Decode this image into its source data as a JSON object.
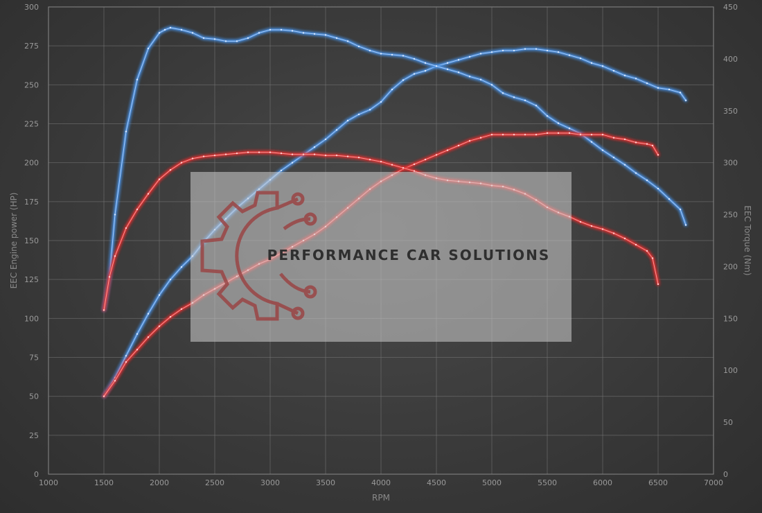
{
  "chart_data": {
    "type": "line",
    "xlabel": "RPM",
    "ylabel_left": "EEC Engine power (HP)",
    "ylabel_right": "EEC Torque (Nm)",
    "xlim": [
      1000,
      7000
    ],
    "ylim_left": [
      0,
      300
    ],
    "ylim_right": [
      0,
      450
    ],
    "x_ticks": [
      1000,
      1500,
      2000,
      2500,
      3000,
      3500,
      4000,
      4500,
      5000,
      5500,
      6000,
      6500,
      7000
    ],
    "y_left_ticks": [
      0,
      25,
      50,
      75,
      100,
      125,
      150,
      175,
      200,
      225,
      250,
      275,
      300
    ],
    "y_right_ticks": [
      0,
      50,
      100,
      150,
      200,
      250,
      300,
      350,
      400,
      450
    ],
    "grid": true,
    "series": [
      {
        "kind": "power",
        "axis": "left",
        "color": "#4a8fe0",
        "points": [
          [
            1500,
            50
          ],
          [
            1600,
            62
          ],
          [
            1700,
            76
          ],
          [
            1800,
            90
          ],
          [
            1900,
            103
          ],
          [
            2000,
            115
          ],
          [
            2100,
            125
          ],
          [
            2200,
            133
          ],
          [
            2300,
            140
          ],
          [
            2400,
            149
          ],
          [
            2500,
            157
          ],
          [
            2600,
            164
          ],
          [
            2700,
            171
          ],
          [
            2800,
            177
          ],
          [
            2900,
            183
          ],
          [
            3000,
            189
          ],
          [
            3100,
            195
          ],
          [
            3200,
            200
          ],
          [
            3300,
            205
          ],
          [
            3400,
            210
          ],
          [
            3500,
            215
          ],
          [
            3600,
            221
          ],
          [
            3700,
            227
          ],
          [
            3800,
            231
          ],
          [
            3900,
            234
          ],
          [
            4000,
            239
          ],
          [
            4100,
            247
          ],
          [
            4200,
            253
          ],
          [
            4300,
            257
          ],
          [
            4400,
            259
          ],
          [
            4500,
            262
          ],
          [
            4600,
            264
          ],
          [
            4700,
            266
          ],
          [
            4800,
            268
          ],
          [
            4900,
            270
          ],
          [
            5000,
            271
          ],
          [
            5100,
            272
          ],
          [
            5200,
            272
          ],
          [
            5300,
            273
          ],
          [
            5400,
            273
          ],
          [
            5500,
            272
          ],
          [
            5600,
            271
          ],
          [
            5700,
            269
          ],
          [
            5800,
            267
          ],
          [
            5900,
            264
          ],
          [
            6000,
            262
          ],
          [
            6100,
            259
          ],
          [
            6200,
            256
          ],
          [
            6300,
            254
          ],
          [
            6400,
            251
          ],
          [
            6500,
            248
          ],
          [
            6600,
            247
          ],
          [
            6700,
            245
          ],
          [
            6750,
            240
          ]
        ]
      },
      {
        "kind": "torque",
        "axis": "right",
        "color": "#4a8fe0",
        "points": [
          [
            1500,
            158
          ],
          [
            1550,
            190
          ],
          [
            1600,
            250
          ],
          [
            1700,
            330
          ],
          [
            1800,
            380
          ],
          [
            1900,
            410
          ],
          [
            2000,
            425
          ],
          [
            2050,
            428
          ],
          [
            2100,
            430
          ],
          [
            2200,
            428
          ],
          [
            2300,
            425
          ],
          [
            2400,
            420
          ],
          [
            2500,
            419
          ],
          [
            2600,
            417
          ],
          [
            2700,
            417
          ],
          [
            2800,
            420
          ],
          [
            2900,
            425
          ],
          [
            3000,
            428
          ],
          [
            3100,
            428
          ],
          [
            3200,
            427
          ],
          [
            3300,
            425
          ],
          [
            3400,
            424
          ],
          [
            3500,
            423
          ],
          [
            3600,
            420
          ],
          [
            3700,
            417
          ],
          [
            3800,
            412
          ],
          [
            3900,
            408
          ],
          [
            4000,
            405
          ],
          [
            4100,
            404
          ],
          [
            4200,
            403
          ],
          [
            4300,
            400
          ],
          [
            4400,
            396
          ],
          [
            4500,
            393
          ],
          [
            4600,
            390
          ],
          [
            4700,
            387
          ],
          [
            4800,
            383
          ],
          [
            4900,
            380
          ],
          [
            5000,
            375
          ],
          [
            5100,
            367
          ],
          [
            5200,
            363
          ],
          [
            5300,
            360
          ],
          [
            5400,
            355
          ],
          [
            5500,
            345
          ],
          [
            5600,
            338
          ],
          [
            5700,
            333
          ],
          [
            5800,
            328
          ],
          [
            5900,
            320
          ],
          [
            6000,
            312
          ],
          [
            6100,
            305
          ],
          [
            6200,
            298
          ],
          [
            6300,
            290
          ],
          [
            6400,
            283
          ],
          [
            6500,
            275
          ],
          [
            6600,
            265
          ],
          [
            6700,
            255
          ],
          [
            6750,
            240
          ]
        ]
      },
      {
        "kind": "power",
        "axis": "left",
        "color": "#e03030",
        "points": [
          [
            1500,
            50
          ],
          [
            1600,
            60
          ],
          [
            1700,
            72
          ],
          [
            1800,
            80
          ],
          [
            1900,
            88
          ],
          [
            2000,
            95
          ],
          [
            2100,
            101
          ],
          [
            2200,
            106
          ],
          [
            2300,
            110
          ],
          [
            2400,
            115
          ],
          [
            2500,
            119
          ],
          [
            2600,
            123
          ],
          [
            2700,
            127
          ],
          [
            2800,
            131
          ],
          [
            2900,
            135
          ],
          [
            3000,
            138
          ],
          [
            3100,
            142
          ],
          [
            3200,
            146
          ],
          [
            3300,
            150
          ],
          [
            3400,
            154
          ],
          [
            3500,
            159
          ],
          [
            3600,
            165
          ],
          [
            3700,
            171
          ],
          [
            3800,
            177
          ],
          [
            3900,
            183
          ],
          [
            4000,
            188
          ],
          [
            4100,
            192
          ],
          [
            4200,
            196
          ],
          [
            4300,
            199
          ],
          [
            4400,
            202
          ],
          [
            4500,
            205
          ],
          [
            4600,
            208
          ],
          [
            4700,
            211
          ],
          [
            4800,
            214
          ],
          [
            4900,
            216
          ],
          [
            5000,
            218
          ],
          [
            5100,
            218
          ],
          [
            5200,
            218
          ],
          [
            5300,
            218
          ],
          [
            5400,
            218
          ],
          [
            5500,
            219
          ],
          [
            5600,
            219
          ],
          [
            5700,
            219
          ],
          [
            5800,
            218
          ],
          [
            5900,
            218
          ],
          [
            6000,
            218
          ],
          [
            6100,
            216
          ],
          [
            6200,
            215
          ],
          [
            6300,
            213
          ],
          [
            6400,
            212
          ],
          [
            6450,
            211
          ],
          [
            6500,
            205
          ]
        ]
      },
      {
        "kind": "torque",
        "axis": "right",
        "color": "#e03030",
        "points": [
          [
            1500,
            158
          ],
          [
            1550,
            190
          ],
          [
            1600,
            210
          ],
          [
            1700,
            237
          ],
          [
            1800,
            255
          ],
          [
            1900,
            270
          ],
          [
            2000,
            284
          ],
          [
            2100,
            293
          ],
          [
            2200,
            300
          ],
          [
            2300,
            304
          ],
          [
            2400,
            306
          ],
          [
            2500,
            307
          ],
          [
            2600,
            308
          ],
          [
            2700,
            309
          ],
          [
            2800,
            310
          ],
          [
            2900,
            310
          ],
          [
            3000,
            310
          ],
          [
            3100,
            309
          ],
          [
            3200,
            308
          ],
          [
            3300,
            308
          ],
          [
            3400,
            308
          ],
          [
            3500,
            307
          ],
          [
            3600,
            307
          ],
          [
            3700,
            306
          ],
          [
            3800,
            305
          ],
          [
            3900,
            303
          ],
          [
            4000,
            301
          ],
          [
            4100,
            298
          ],
          [
            4200,
            295
          ],
          [
            4300,
            292
          ],
          [
            4400,
            288
          ],
          [
            4500,
            285
          ],
          [
            4600,
            283
          ],
          [
            4700,
            282
          ],
          [
            4800,
            281
          ],
          [
            4900,
            280
          ],
          [
            5000,
            278
          ],
          [
            5100,
            277
          ],
          [
            5200,
            274
          ],
          [
            5300,
            270
          ],
          [
            5400,
            264
          ],
          [
            5500,
            257
          ],
          [
            5600,
            252
          ],
          [
            5700,
            248
          ],
          [
            5800,
            243
          ],
          [
            5900,
            239
          ],
          [
            6000,
            236
          ],
          [
            6100,
            232
          ],
          [
            6200,
            227
          ],
          [
            6300,
            221
          ],
          [
            6400,
            215
          ],
          [
            6450,
            208
          ],
          [
            6500,
            183
          ]
        ]
      }
    ]
  },
  "watermark": {
    "text": "PERFORMANCE CAR SOLUTIONS",
    "logo_icon": "gear-circuit-logo"
  }
}
